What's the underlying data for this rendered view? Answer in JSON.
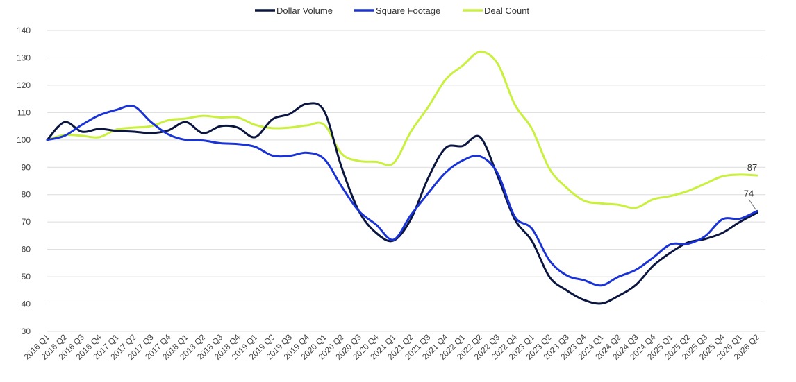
{
  "chart_data": {
    "type": "line",
    "title": "",
    "xlabel": "",
    "ylabel": "",
    "ylim": [
      30,
      140
    ],
    "yticks": [
      30,
      40,
      50,
      60,
      70,
      80,
      90,
      100,
      110,
      120,
      130,
      140
    ],
    "grid": "horizontal",
    "legend_position": "top-center",
    "categories": [
      "2016 Q1",
      "2016 Q2",
      "2016 Q3",
      "2016 Q4",
      "2017 Q1",
      "2017 Q2",
      "2017 Q3",
      "2017 Q4",
      "2018 Q1",
      "2018 Q2",
      "2018 Q3",
      "2018 Q4",
      "2019 Q1",
      "2019 Q2",
      "2019 Q3",
      "2019 Q4",
      "2020 Q1",
      "2020 Q2",
      "2020 Q3",
      "2020 Q4",
      "2021 Q1",
      "2021 Q2",
      "2021 Q3",
      "2021 Q4",
      "2022 Q1",
      "2022 Q2",
      "2022 Q3",
      "2022 Q4",
      "2023 Q1",
      "2023 Q2",
      "2023 Q3",
      "2023 Q4",
      "2024 Q1",
      "2024 Q2",
      "2024 Q3",
      "2024 Q4",
      "2025 Q1",
      "2025 Q2",
      "2025 Q3",
      "2025 Q4",
      "2026 Q1",
      "2026 Q2"
    ],
    "series": [
      {
        "name": "Dollar Volume",
        "color": "#0b1640",
        "values": [
          100,
          106.5,
          103,
          104,
          103.3,
          103,
          102.5,
          103.5,
          106.5,
          102.5,
          105,
          104.5,
          101,
          107.5,
          109.5,
          113.2,
          110.5,
          90,
          74,
          66,
          63.2,
          71,
          86,
          97,
          97.8,
          101,
          87,
          71,
          63,
          50,
          45,
          41.5,
          40.2,
          43,
          47,
          54,
          58.8,
          62.5,
          63.8,
          66,
          70,
          73.4
        ]
      },
      {
        "name": "Square Footage",
        "color": "#1a33d6",
        "values": [
          100,
          101.5,
          105.5,
          109,
          111,
          112.3,
          106.5,
          102,
          100,
          99.8,
          98.8,
          98.5,
          97.5,
          94.3,
          94.2,
          95.3,
          93,
          83,
          74,
          69,
          63.5,
          72.5,
          80.5,
          88,
          92.5,
          94,
          88,
          72,
          67.5,
          56,
          50.5,
          48.7,
          46.8,
          50,
          52.5,
          57,
          61.8,
          62,
          64.8,
          71,
          71.2,
          74
        ]
      },
      {
        "name": "Deal Count",
        "color": "#c8f03c",
        "values": [
          100,
          101.8,
          101.5,
          101,
          103.8,
          104.5,
          105,
          107.2,
          107.8,
          108.8,
          108.2,
          108.2,
          105.5,
          104.3,
          104.5,
          105.3,
          105.5,
          95,
          92.3,
          92,
          91.5,
          103,
          112,
          122,
          127.2,
          132.2,
          128,
          113,
          104,
          89.5,
          82.5,
          77.8,
          76.8,
          76.3,
          75.2,
          78.3,
          79.5,
          81.3,
          84,
          86.7,
          87.3,
          87
        ]
      }
    ],
    "end_labels": [
      "74",
      "87"
    ]
  }
}
